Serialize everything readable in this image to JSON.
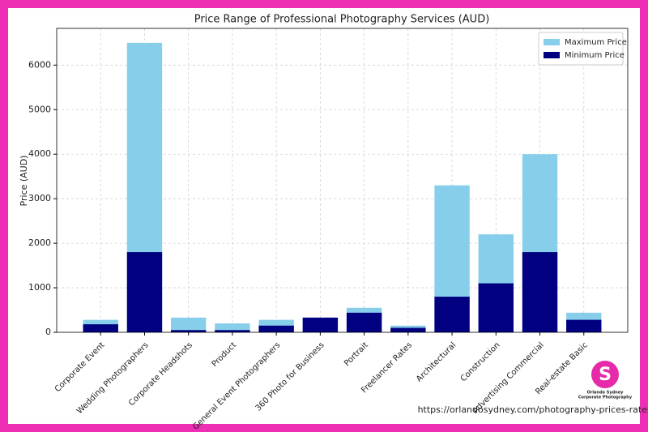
{
  "chart_data": {
    "type": "bar",
    "title": "Price Range of Professional Photography Services (AUD)",
    "y_label": "Price (AUD)",
    "categories": [
      "Corporate Event",
      "Wedding Photographers",
      "Corporate Headshots",
      "Product",
      "General Event Photographers",
      "360 Photo for Business",
      "Portrait",
      "Freelancer Rates",
      "Architectural",
      "Construction",
      "Advertising Commercial",
      "Real-estate Basic"
    ],
    "series": [
      {
        "name": "Maximum Price",
        "color": "#87ceeb",
        "values": [
          280,
          6500,
          330,
          200,
          280,
          330,
          550,
          150,
          3300,
          2200,
          4000,
          440
        ]
      },
      {
        "name": "Minimum Price",
        "color": "#000080",
        "values": [
          180,
          1800,
          50,
          50,
          150,
          330,
          440,
          100,
          800,
          1100,
          1800,
          280
        ]
      }
    ],
    "ylim": [
      0,
      6825
    ],
    "yticks": [
      0,
      1000,
      2000,
      3000,
      4000,
      5000,
      6000
    ],
    "grid": true,
    "legend": "upper right",
    "source": "https://orlandosydney.com/photography-prices-rates/",
    "logo": [
      "Orlando Sydney",
      "Corporate Photography"
    ]
  }
}
